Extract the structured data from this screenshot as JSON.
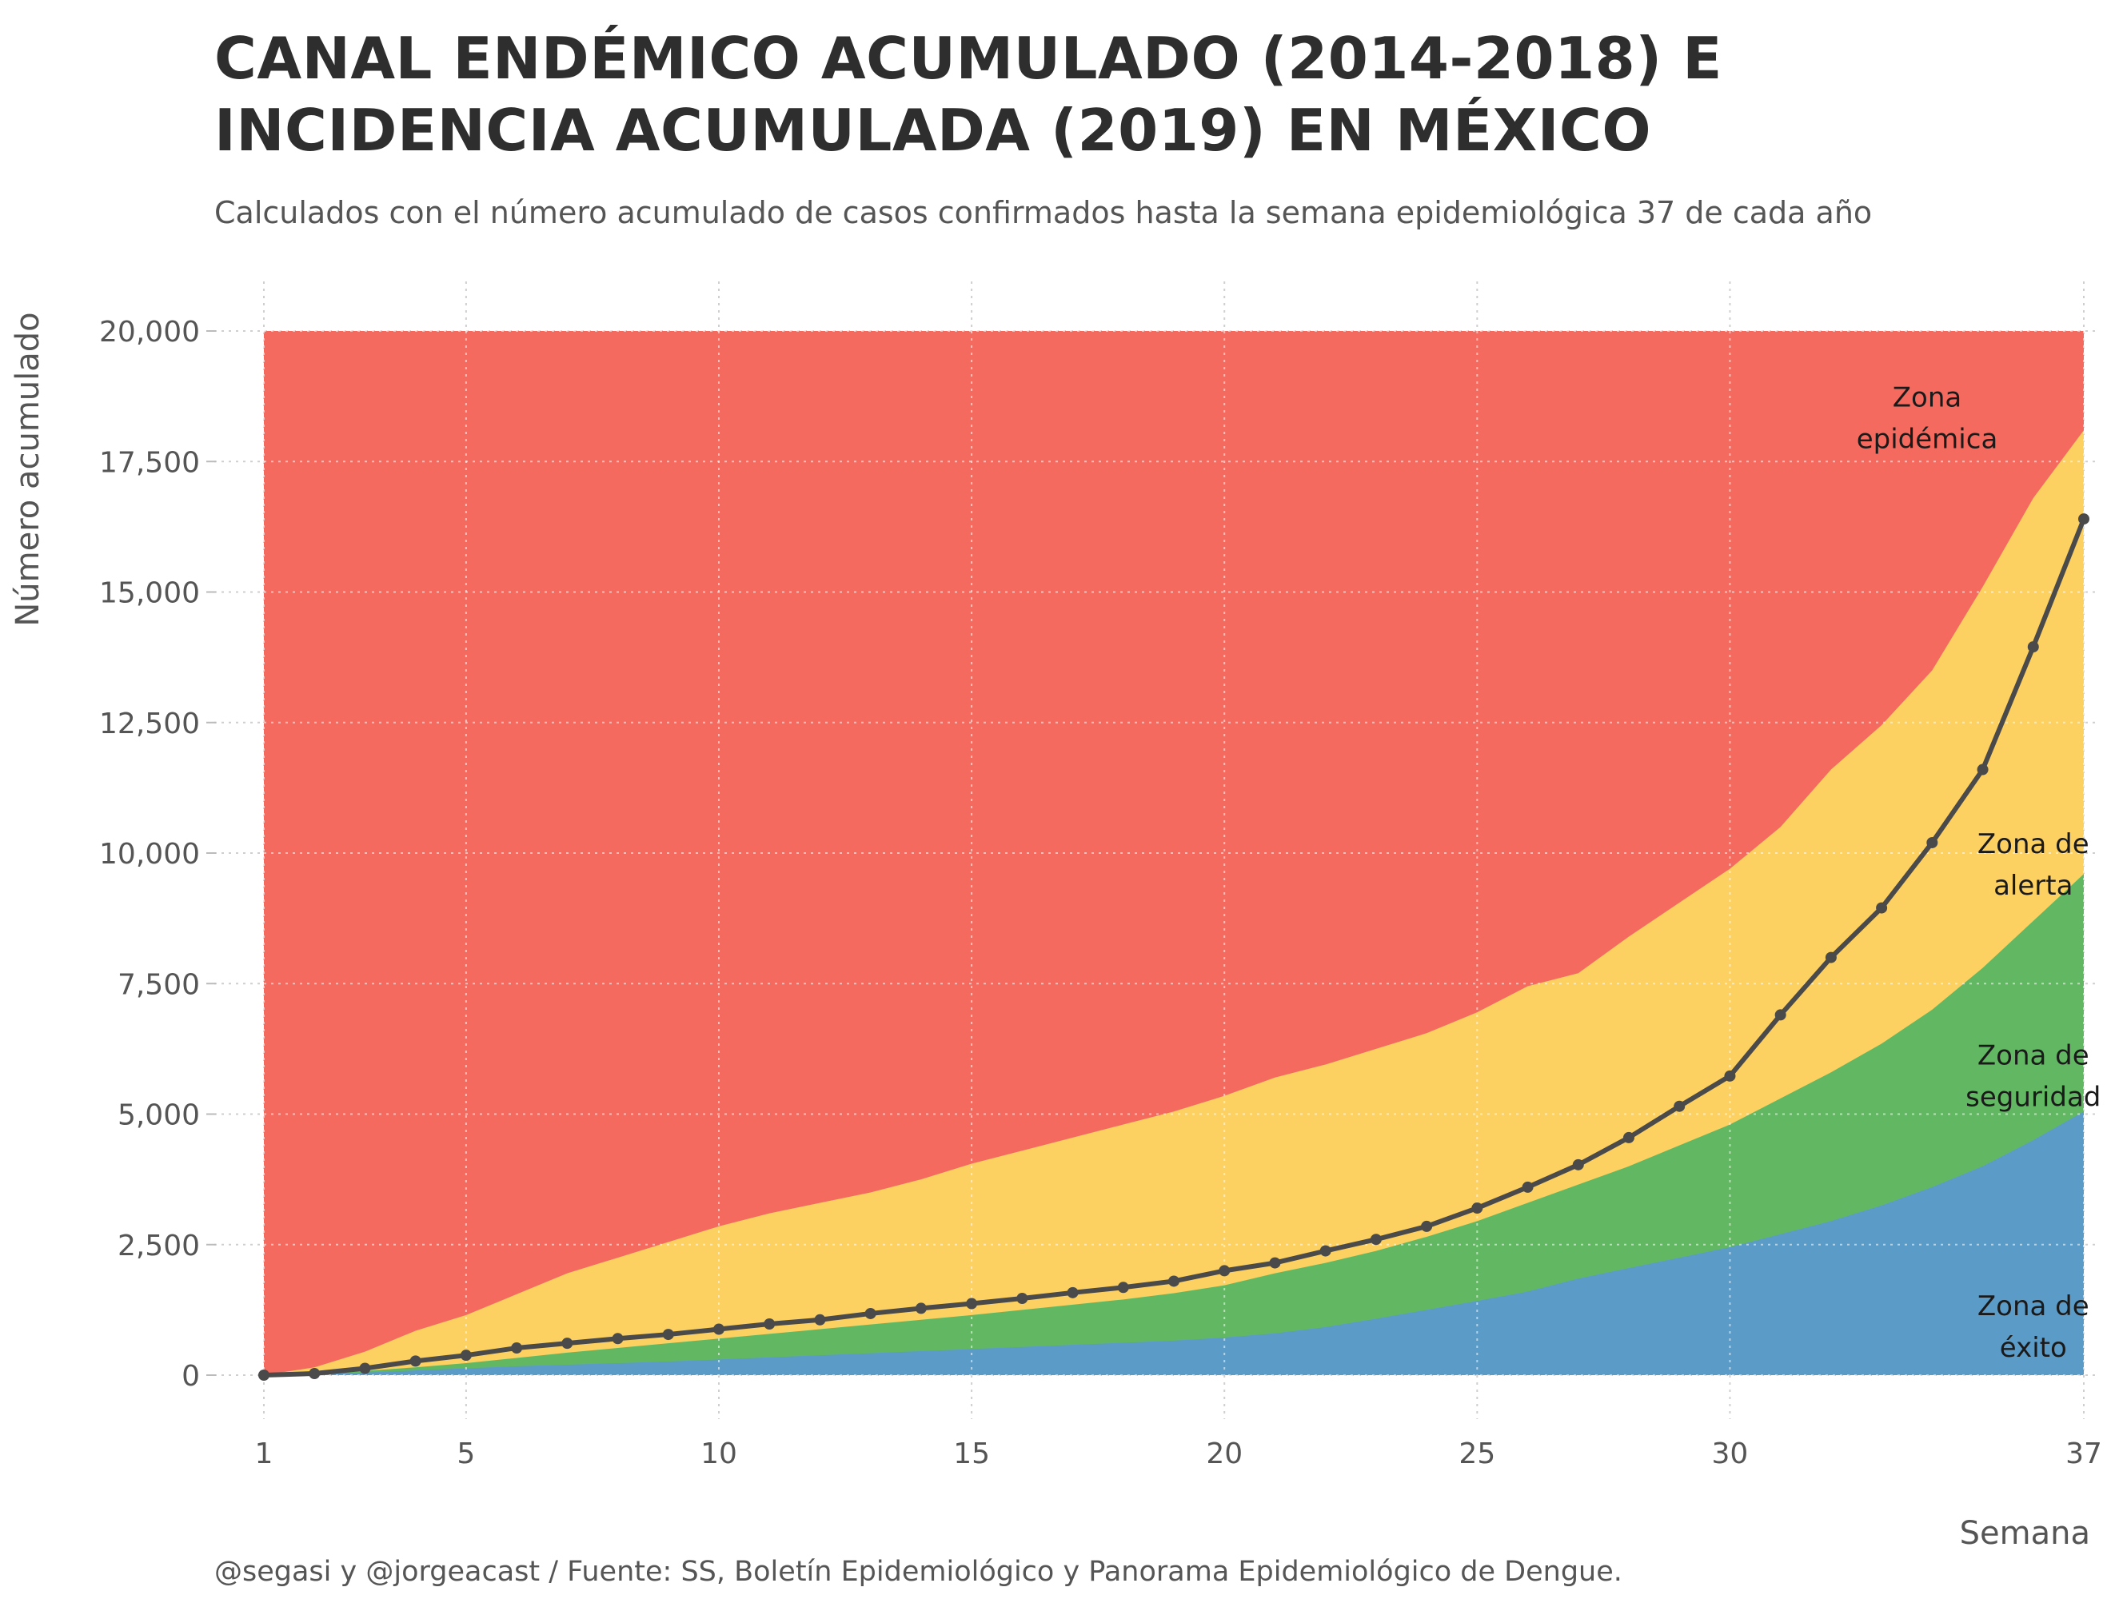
{
  "title": "CANAL ENDÉMICO ACUMULADO (2014-2018) E INCIDENCIA ACUMULADA (2019) EN MÉXICO",
  "subtitle": "Calculados con el número acumulado de casos confirmados hasta la semana epidemiológica 37 de cada año",
  "caption": "@segasi y @jorgeacast / Fuente: SS, Boletín Epidemiológico y Panorama Epidemiológico de Dengue.",
  "chart_data": {
    "type": "area",
    "xlabel": "Semana",
    "ylabel": "Número acumulado",
    "xlim": [
      1,
      37
    ],
    "ylim": [
      0,
      20000
    ],
    "x_ticks": [
      1,
      5,
      10,
      15,
      20,
      25,
      30,
      37
    ],
    "x_tick_labels": [
      "1",
      "5",
      "10",
      "15",
      "20",
      "25",
      "30",
      "37"
    ],
    "y_ticks": [
      0,
      2500,
      5000,
      7500,
      10000,
      12500,
      15000,
      17500,
      20000
    ],
    "y_tick_labels": [
      "0",
      "2,500",
      "5,000",
      "7,500",
      "10,000",
      "12,500",
      "15,000",
      "17,500",
      "20,000"
    ],
    "grid": true,
    "x": [
      1,
      2,
      3,
      4,
      5,
      6,
      7,
      8,
      9,
      10,
      11,
      12,
      13,
      14,
      15,
      16,
      17,
      18,
      19,
      20,
      21,
      22,
      23,
      24,
      25,
      26,
      27,
      28,
      29,
      30,
      31,
      32,
      33,
      34,
      35,
      36,
      37
    ],
    "series": [
      {
        "name": "Zona de éxito",
        "color": "#5b9bc8",
        "values": [
          0,
          20,
          50,
          90,
          130,
          170,
          200,
          230,
          260,
          300,
          340,
          380,
          420,
          460,
          500,
          540,
          580,
          620,
          660,
          720,
          800,
          920,
          1080,
          1250,
          1420,
          1600,
          1850,
          2050,
          2250,
          2450,
          2700,
          2950,
          3250,
          3600,
          4000,
          4500,
          5050
        ]
      },
      {
        "name": "Zona de seguridad",
        "color": "#62b862",
        "values": [
          0,
          30,
          80,
          150,
          230,
          330,
          430,
          520,
          610,
          700,
          790,
          880,
          970,
          1060,
          1150,
          1250,
          1350,
          1450,
          1570,
          1720,
          1950,
          2150,
          2380,
          2650,
          2950,
          3300,
          3650,
          4000,
          4400,
          4800,
          5300,
          5800,
          6350,
          7000,
          7800,
          8700,
          9600
        ]
      },
      {
        "name": "Zona de alerta",
        "color": "#fdd062",
        "values": [
          0,
          150,
          450,
          850,
          1150,
          1550,
          1950,
          2250,
          2550,
          2850,
          3100,
          3300,
          3500,
          3750,
          4050,
          4300,
          4550,
          4800,
          5050,
          5350,
          5700,
          5950,
          6250,
          6550,
          6950,
          7450,
          7700,
          8400,
          9050,
          9700,
          10500,
          11600,
          12450,
          13500,
          15100,
          16800,
          18100
        ]
      },
      {
        "name": "Zona epidémica",
        "color": "#f46a5e",
        "values": [
          20000,
          20000,
          20000,
          20000,
          20000,
          20000,
          20000,
          20000,
          20000,
          20000,
          20000,
          20000,
          20000,
          20000,
          20000,
          20000,
          20000,
          20000,
          20000,
          20000,
          20000,
          20000,
          20000,
          20000,
          20000,
          20000,
          20000,
          20000,
          20000,
          20000,
          20000,
          20000,
          20000,
          20000,
          20000,
          20000,
          20000
        ]
      },
      {
        "name": "2019",
        "color": "#4a4a4a",
        "values": [
          0,
          30,
          130,
          270,
          380,
          520,
          610,
          700,
          780,
          880,
          980,
          1060,
          1180,
          1280,
          1370,
          1470,
          1580,
          1680,
          1800,
          2000,
          2150,
          2380,
          2600,
          2850,
          3200,
          3600,
          4030,
          4550,
          5150,
          5730,
          6900,
          8000,
          8950,
          10200,
          11600,
          13950,
          16400
        ]
      }
    ],
    "annotations": [
      {
        "id": "epidemica",
        "lines": [
          "Zona",
          "epidémica"
        ],
        "x": 33.9,
        "y": 18550
      },
      {
        "id": "alerta",
        "lines": [
          "Zona de",
          "alerta"
        ],
        "x": 36.0,
        "y": 10000
      },
      {
        "id": "seguridad",
        "lines": [
          "Zona de",
          "seguridad"
        ],
        "x": 36.0,
        "y": 5950
      },
      {
        "id": "exito",
        "lines": [
          "Zona de",
          "éxito"
        ],
        "x": 36.0,
        "y": 1150
      }
    ]
  }
}
